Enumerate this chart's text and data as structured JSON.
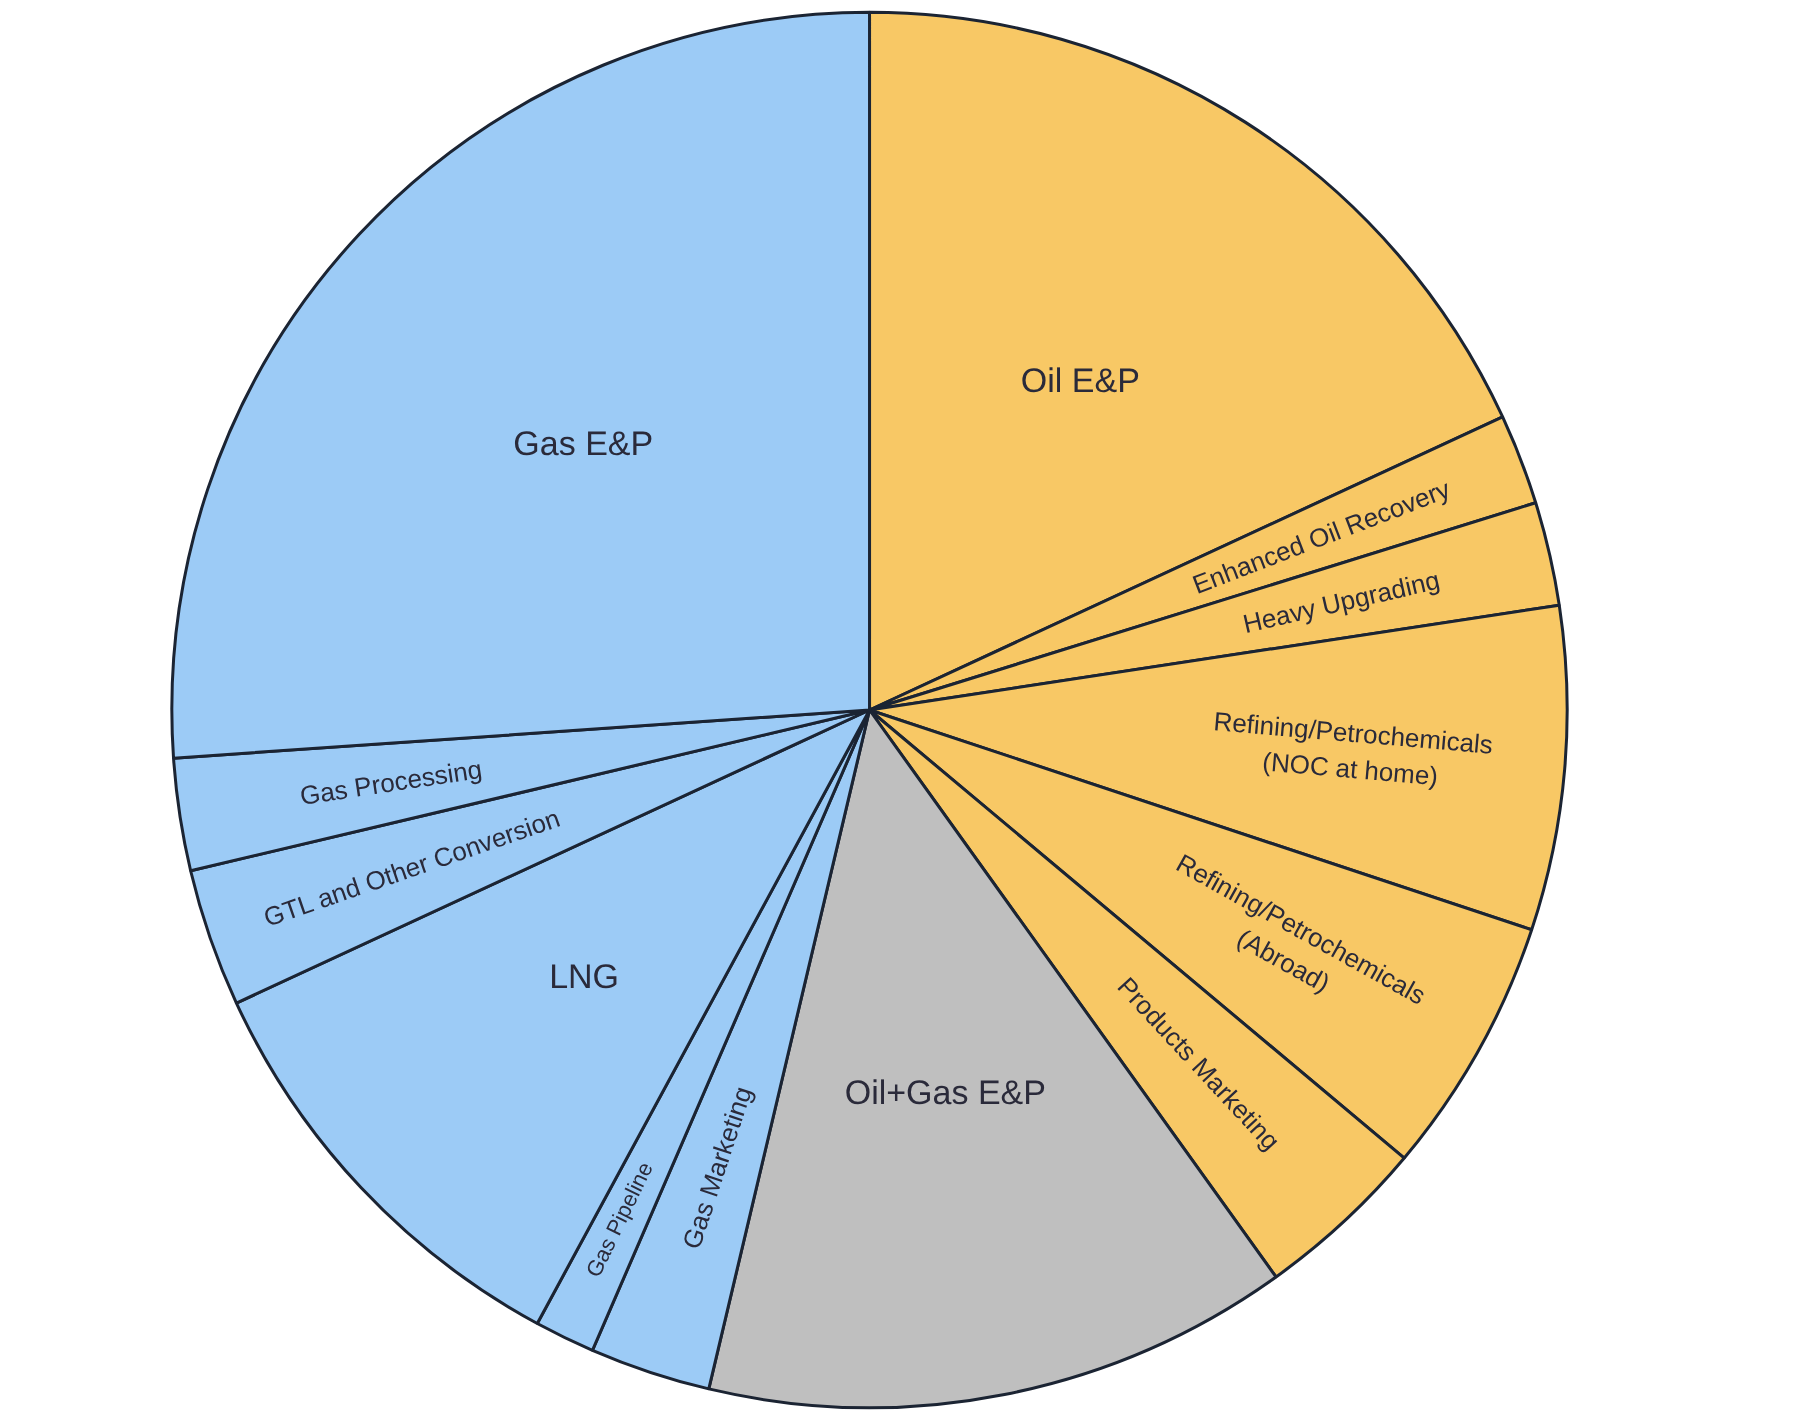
{
  "chart_data": {
    "type": "pie",
    "categories": [
      "Oil E&P",
      "Enhanced Oil Recovery",
      "Heavy Upgrading",
      "Refining/Petrochemicals (NOC at home)",
      "Refining/Petrochemicals (Abroad)",
      "Products Marketing",
      "Oil+Gas E&P",
      "Gas Marketing",
      "Gas Pipeline",
      "LNG",
      "GTL and Other Conversion",
      "Gas Processing",
      "Gas E&P"
    ],
    "values": [
      18.1,
      2.1,
      2.4,
      7.5,
      6.0,
      4.0,
      13.6,
      2.8,
      1.4,
      10.2,
      3.2,
      2.6,
      26.1
    ],
    "colors": [
      "#f8c865",
      "#f8c865",
      "#f8c865",
      "#f8c865",
      "#f8c865",
      "#f8c865",
      "#bfbfbf",
      "#9ccbf6",
      "#9ccbf6",
      "#9ccbf6",
      "#9ccbf6",
      "#9ccbf6",
      "#9ccbf6"
    ]
  }
}
